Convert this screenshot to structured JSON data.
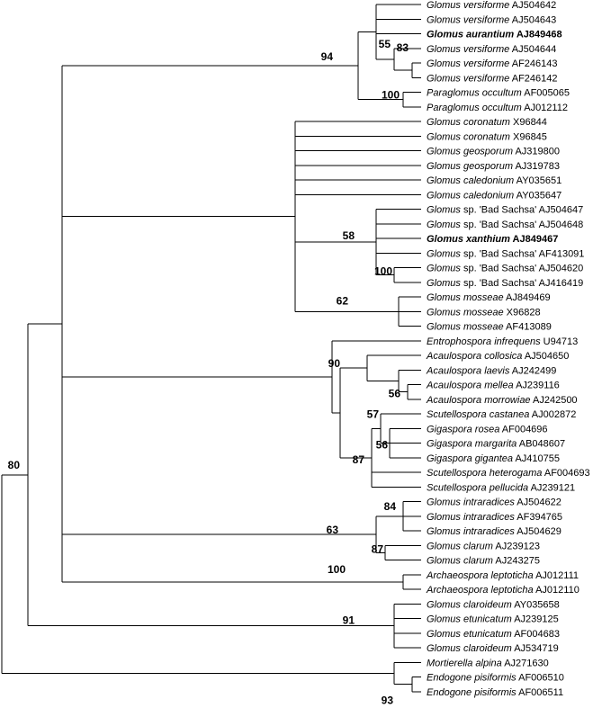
{
  "taxa": [
    {
      "id": "t1",
      "genus": "Glomus versiforme",
      "rest": "AJ504642",
      "bold": false
    },
    {
      "id": "t2",
      "genus": "Glomus versiforme",
      "rest": "AJ504643",
      "bold": false
    },
    {
      "id": "t3",
      "genus": "Glomus aurantium",
      "rest": "AJ849468",
      "bold": true
    },
    {
      "id": "t4",
      "genus": "Glomus versiforme",
      "rest": "AJ504644",
      "bold": false
    },
    {
      "id": "t5",
      "genus": "Glomus versiforme",
      "rest": "AF246143",
      "bold": false
    },
    {
      "id": "t6",
      "genus": "Glomus versiforme",
      "rest": "AF246142",
      "bold": false
    },
    {
      "id": "t7",
      "genus": "Paraglomus occultum",
      "rest": "AF005065",
      "bold": false
    },
    {
      "id": "t8",
      "genus": "Paraglomus occultum",
      "rest": "AJ012112",
      "bold": false
    },
    {
      "id": "t9",
      "genus": "Glomus coronatum",
      "rest": "X96844",
      "bold": false
    },
    {
      "id": "t10",
      "genus": "Glomus coronatum",
      "rest": "X96845",
      "bold": false
    },
    {
      "id": "t11",
      "genus": "Glomus geosporum",
      "rest": "AJ319800",
      "bold": false
    },
    {
      "id": "t12",
      "genus": "Glomus geosporum",
      "rest": "AJ319783",
      "bold": false
    },
    {
      "id": "t13",
      "genus": "Glomus caledonium",
      "rest": "AY035651",
      "bold": false
    },
    {
      "id": "t14",
      "genus": "Glomus caledonium",
      "rest": "AY035647",
      "bold": false
    },
    {
      "id": "t15",
      "genus": "Glomus",
      "rest": "sp. 'Bad Sachsa' AJ504647",
      "bold": false
    },
    {
      "id": "t16",
      "genus": "Glomus",
      "rest": "sp. 'Bad Sachsa' AJ504648",
      "bold": false
    },
    {
      "id": "t17",
      "genus": "Glomus xanthium",
      "rest": "AJ849467",
      "bold": true
    },
    {
      "id": "t18",
      "genus": "Glomus",
      "rest": "sp. 'Bad Sachsa' AF413091",
      "bold": false
    },
    {
      "id": "t19",
      "genus": "Glomus",
      "rest": "sp. 'Bad Sachsa' AJ504620",
      "bold": false
    },
    {
      "id": "t20",
      "genus": "Glomus",
      "rest": "sp. 'Bad Sachsa' AJ416419",
      "bold": false
    },
    {
      "id": "t21",
      "genus": "Glomus mosseae",
      "rest": "AJ849469",
      "bold": false
    },
    {
      "id": "t22",
      "genus": "Glomus mosseae",
      "rest": "X96828",
      "bold": false
    },
    {
      "id": "t23",
      "genus": "Glomus mosseae",
      "rest": "AF413089",
      "bold": false
    },
    {
      "id": "t24",
      "genus": "Entrophospora infrequens",
      "rest": "U94713",
      "bold": false
    },
    {
      "id": "t25",
      "genus": "Acaulospora collosica",
      "rest": "AJ504650",
      "bold": false
    },
    {
      "id": "t26",
      "genus": "Acaulospora laevis",
      "rest": "AJ242499",
      "bold": false
    },
    {
      "id": "t27",
      "genus": "Acaulospora mellea",
      "rest": "AJ239116",
      "bold": false
    },
    {
      "id": "t28",
      "genus": "Acaulospora morrowiae",
      "rest": "AJ242500",
      "bold": false
    },
    {
      "id": "t29",
      "genus": "Scutellospora castanea",
      "rest": "AJ002872",
      "bold": false
    },
    {
      "id": "t30",
      "genus": "Gigaspora rosea",
      "rest": "AF004696",
      "bold": false
    },
    {
      "id": "t31",
      "genus": "Gigaspora margarita",
      "rest": "AB048607",
      "bold": false
    },
    {
      "id": "t32",
      "genus": "Gigaspora gigantea",
      "rest": "AJ410755",
      "bold": false
    },
    {
      "id": "t33",
      "genus": "Scutellospora heterogama",
      "rest": "AF004693",
      "bold": false
    },
    {
      "id": "t34",
      "genus": "Scutellospora pellucida",
      "rest": "AJ239121",
      "bold": false
    },
    {
      "id": "t35",
      "genus": "Glomus intraradices",
      "rest": "AJ504622",
      "bold": false
    },
    {
      "id": "t36",
      "genus": "Glomus intraradices",
      "rest": "AF394765",
      "bold": false
    },
    {
      "id": "t37",
      "genus": "Glomus intraradices",
      "rest": "AJ504629",
      "bold": false
    },
    {
      "id": "t38",
      "genus": "Glomus clarum",
      "rest": "AJ239123",
      "bold": false
    },
    {
      "id": "t39",
      "genus": "Glomus clarum",
      "rest": "AJ243275",
      "bold": false
    },
    {
      "id": "t40",
      "genus": "Archaeospora leptoticha",
      "rest": "AJ012111",
      "bold": false
    },
    {
      "id": "t41",
      "genus": "Archaeospora leptoticha",
      "rest": "AJ012110",
      "bold": false
    },
    {
      "id": "t42",
      "genus": "Glomus claroideum",
      "rest": "AY035658",
      "bold": false
    },
    {
      "id": "t43",
      "genus": "Glomus etunicatum",
      "rest": "AJ239125",
      "bold": false
    },
    {
      "id": "t44",
      "genus": "Glomus etunicatum",
      "rest": "AF004683",
      "bold": false
    },
    {
      "id": "t45",
      "genus": "Glomus claroideum",
      "rest": "AJ534719",
      "bold": false
    },
    {
      "id": "t46",
      "genus": "Mortierella alpina",
      "rest": "AJ271630",
      "bold": false
    },
    {
      "id": "t47",
      "genus": "Endogone pisiformis",
      "rest": "AF006510",
      "bold": false
    },
    {
      "id": "t48",
      "genus": "Endogone pisiformis",
      "rest": "AF006511",
      "bold": false
    }
  ],
  "bootstrap": [
    {
      "node": "n_versi",
      "value": "94"
    },
    {
      "node": "n_v55",
      "value": "55"
    },
    {
      "node": "n_v83",
      "value": "83"
    },
    {
      "node": "n_para",
      "value": "100"
    },
    {
      "node": "n_bad",
      "value": "58"
    },
    {
      "node": "n_bad100",
      "value": "100"
    },
    {
      "node": "n_moss",
      "value": "62"
    },
    {
      "node": "n_acaul",
      "value": "90"
    },
    {
      "node": "n_acaul56",
      "value": "56"
    },
    {
      "node": "n_gigas",
      "value": "87"
    },
    {
      "node": "n_gig57",
      "value": "57"
    },
    {
      "node": "n_gig56",
      "value": "56"
    },
    {
      "node": "n_intra",
      "value": "63"
    },
    {
      "node": "n_int84",
      "value": "84"
    },
    {
      "node": "n_clarum",
      "value": "87"
    },
    {
      "node": "n_archae",
      "value": "100"
    },
    {
      "node": "n_etun",
      "value": "91"
    },
    {
      "node": "n_glom",
      "value": "80"
    },
    {
      "node": "n_endo",
      "value": "93"
    }
  ]
}
